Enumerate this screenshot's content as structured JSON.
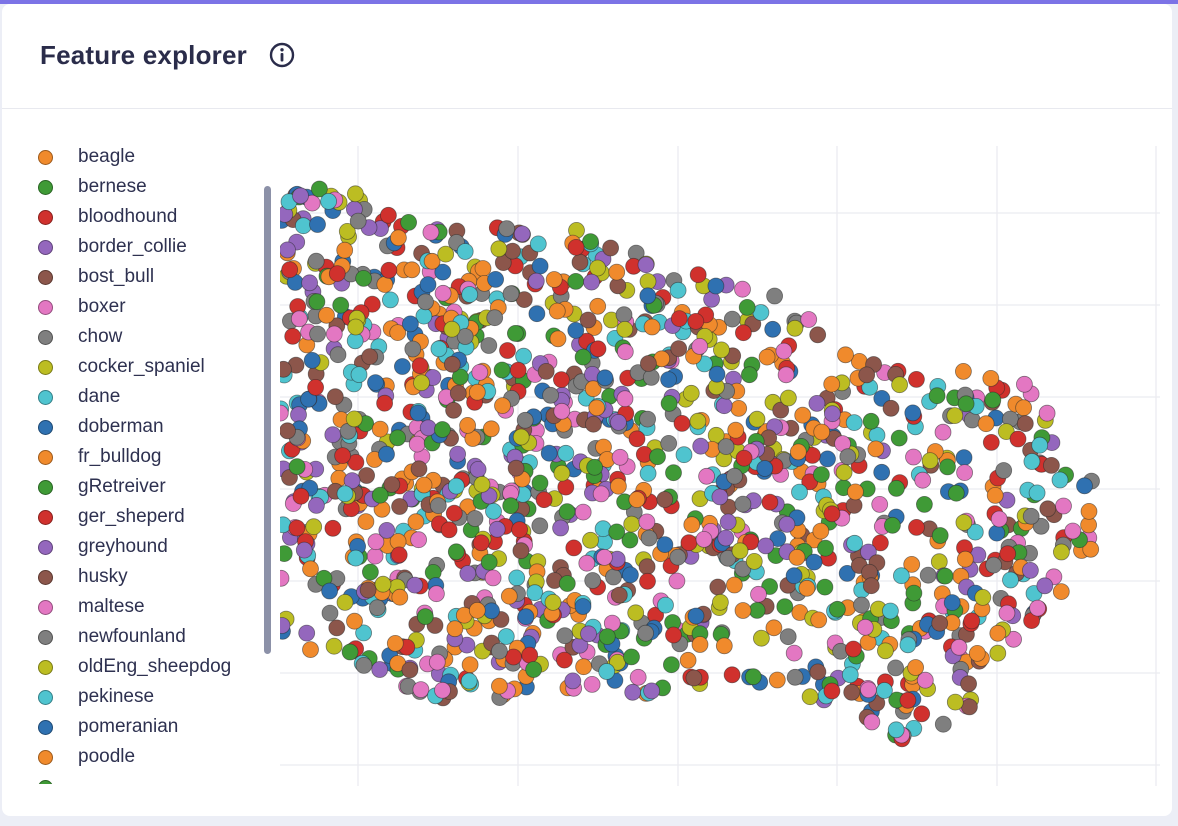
{
  "panel": {
    "title": "Feature explorer",
    "info_icon": "info-circle-icon"
  },
  "legend": {
    "items": [
      {
        "label": "beagle",
        "color": "#f08a2c"
      },
      {
        "label": "bernese",
        "color": "#3f9a36"
      },
      {
        "label": "bloodhound",
        "color": "#d0312d"
      },
      {
        "label": "border_collie",
        "color": "#9467bd"
      },
      {
        "label": "bost_bull",
        "color": "#8c564b"
      },
      {
        "label": "boxer",
        "color": "#e377c2"
      },
      {
        "label": "chow",
        "color": "#7f7f7f"
      },
      {
        "label": "cocker_spaniel",
        "color": "#bcbd22"
      },
      {
        "label": "dane",
        "color": "#4fc4cf"
      },
      {
        "label": "doberman",
        "color": "#2f71b1"
      },
      {
        "label": "fr_bulldog",
        "color": "#f08a2c"
      },
      {
        "label": "gRetreiver",
        "color": "#3f9a36"
      },
      {
        "label": "ger_sheperd",
        "color": "#d0312d"
      },
      {
        "label": "greyhound",
        "color": "#9467bd"
      },
      {
        "label": "husky",
        "color": "#8c564b"
      },
      {
        "label": "maltese",
        "color": "#e377c2"
      },
      {
        "label": "newfounland",
        "color": "#7f7f7f"
      },
      {
        "label": "oldEng_sheepdog",
        "color": "#bcbd22"
      },
      {
        "label": "pekinese",
        "color": "#4fc4cf"
      },
      {
        "label": "pomeranian",
        "color": "#2f71b1"
      },
      {
        "label": "poodle",
        "color": "#f08a2c"
      },
      {
        "label": "",
        "color": "#3f9a36"
      }
    ]
  },
  "chart_data": {
    "type": "scatter",
    "title": "",
    "xlabel": "",
    "ylabel": "",
    "grid": true,
    "legend_position": "left",
    "point_count": 1500,
    "note_series": [
      "beagle",
      "bernese",
      "bloodhound",
      "border_collie",
      "bost_bull",
      "boxer",
      "chow",
      "cocker_spaniel",
      "dane",
      "doberman",
      "fr_bulldog",
      "gRetreiver",
      "ger_sheperd",
      "greyhound",
      "husky",
      "maltese",
      "newfounland",
      "oldEng_sheepdog",
      "pekinese",
      "pomeranian",
      "poodle"
    ]
  }
}
